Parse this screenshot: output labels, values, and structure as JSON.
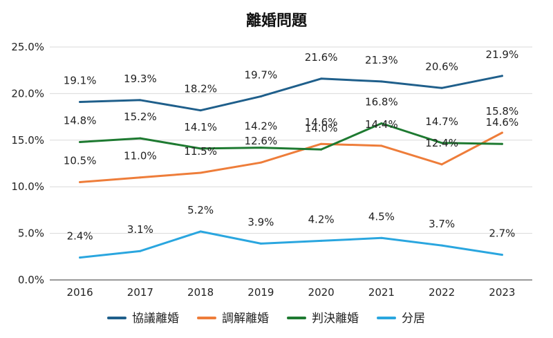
{
  "chart_data": {
    "type": "line",
    "title": "離婚問題",
    "xlabel": "",
    "ylabel": "",
    "x": [
      "2016",
      "2017",
      "2018",
      "2019",
      "2020",
      "2021",
      "2022",
      "2023"
    ],
    "yticks": [
      "0.0%",
      "5.0%",
      "10.0%",
      "15.0%",
      "20.0%",
      "25.0%"
    ],
    "ylim": [
      0,
      25
    ],
    "grid": true,
    "legend_position": "bottom",
    "series": [
      {
        "name": "協議離婚",
        "color": "#1f5f8b",
        "values": [
          19.1,
          19.3,
          18.2,
          19.7,
          21.6,
          21.3,
          20.6,
          21.9
        ],
        "labels": [
          "19.1%",
          "19.3%",
          "18.2%",
          "19.7%",
          "21.6%",
          "21.3%",
          "20.6%",
          "21.9%"
        ]
      },
      {
        "name": "調解離婚",
        "color": "#ee7d3a",
        "values": [
          10.5,
          11.0,
          11.5,
          12.6,
          14.6,
          14.4,
          12.4,
          15.8
        ],
        "labels": [
          "10.5%",
          "11.0%",
          "11.5%",
          "12.6%",
          "14.6%",
          "14.4%",
          "12.4%",
          "15.8%"
        ]
      },
      {
        "name": "判決離婚",
        "color": "#1e7a31",
        "values": [
          14.8,
          15.2,
          14.1,
          14.2,
          14.0,
          16.8,
          14.7,
          14.6
        ],
        "labels": [
          "14.8%",
          "15.2%",
          "14.1%",
          "14.2%",
          "14.0%",
          "16.8%",
          "14.7%",
          "14.6%"
        ]
      },
      {
        "name": "分居",
        "color": "#2aa6df",
        "values": [
          2.4,
          3.1,
          5.2,
          3.9,
          4.2,
          4.5,
          3.7,
          2.7
        ],
        "labels": [
          "2.4%",
          "3.1%",
          "5.2%",
          "3.9%",
          "4.2%",
          "4.5%",
          "3.7%",
          "2.7%"
        ]
      }
    ]
  }
}
